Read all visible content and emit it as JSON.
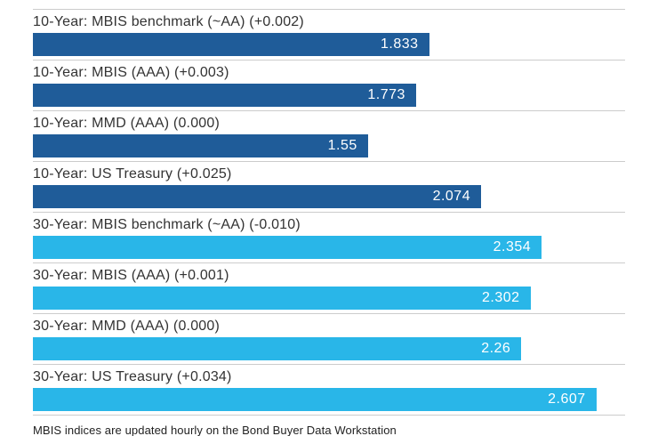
{
  "chart_data": {
    "type": "bar",
    "orientation": "horizontal",
    "title": "",
    "xlabel": "",
    "ylabel": "",
    "axis_max": 2.74,
    "grid": "row-dividers",
    "legend": "none",
    "bars": [
      {
        "label": "10-Year: MBIS benchmark (~AA) (+0.002)",
        "group": "10-Year",
        "value": 1.833,
        "display": "1.833",
        "color": "#1f5c99"
      },
      {
        "label": "10-Year: MBIS (AAA) (+0.003)",
        "group": "10-Year",
        "value": 1.773,
        "display": "1.773",
        "color": "#1f5c99"
      },
      {
        "label": "10-Year: MMD (AAA) (0.000)",
        "group": "10-Year",
        "value": 1.55,
        "display": "1.55",
        "color": "#1f5c99"
      },
      {
        "label": "10-Year: US Treasury (+0.025)",
        "group": "10-Year",
        "value": 2.074,
        "display": "2.074",
        "color": "#1f5c99"
      },
      {
        "label": "30-Year: MBIS benchmark (~AA) (-0.010)",
        "group": "30-Year",
        "value": 2.354,
        "display": "2.354",
        "color": "#29b6e8"
      },
      {
        "label": "30-Year: MBIS (AAA) (+0.001)",
        "group": "30-Year",
        "value": 2.302,
        "display": "2.302",
        "color": "#29b6e8"
      },
      {
        "label": "30-Year: MMD (AAA) (0.000)",
        "group": "30-Year",
        "value": 2.26,
        "display": "2.26",
        "color": "#29b6e8"
      },
      {
        "label": "30-Year: US Treasury (+0.034)",
        "group": "30-Year",
        "value": 2.607,
        "display": "2.607",
        "color": "#29b6e8"
      }
    ],
    "footnote": "MBIS indices are updated hourly on the Bond Buyer Data Workstation",
    "colors": {
      "ten_year_blue": "#1f5c99",
      "thirty_year_cyan": "#29b6e8",
      "divider": "#cccccc",
      "label_text": "#333333",
      "value_text": "#ffffff"
    }
  }
}
